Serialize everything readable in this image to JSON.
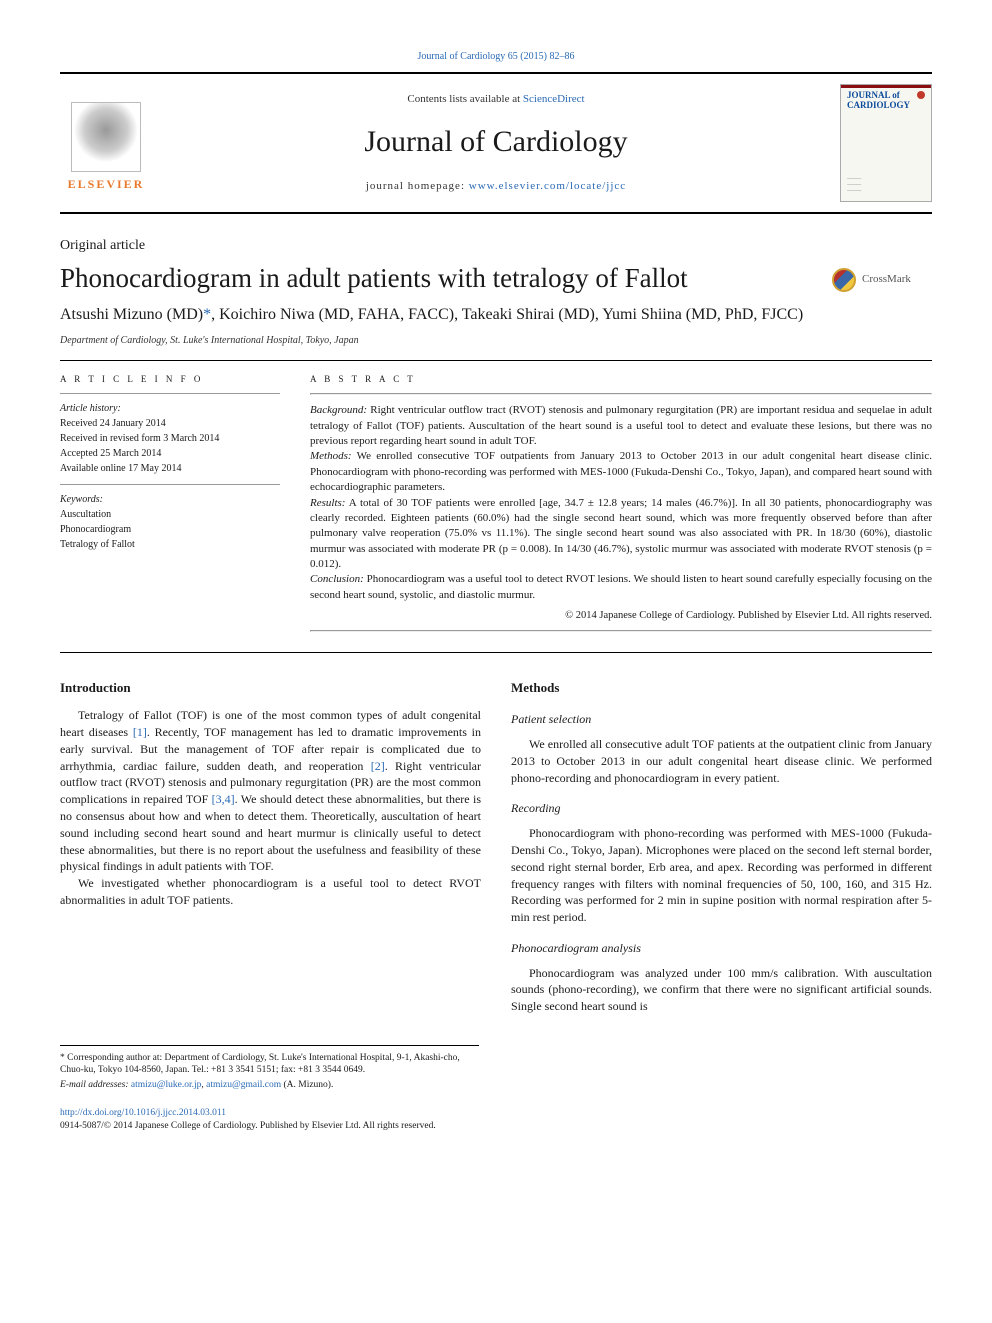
{
  "top_link": "Journal of Cardiology 65 (2015) 82–86",
  "header": {
    "elsevier_label": "ELSEVIER",
    "contents_prefix": "Contents lists available at ",
    "contents_link": "ScienceDirect",
    "journal_title": "Journal of Cardiology",
    "homepage_prefix": "journal homepage: ",
    "homepage_url": "www.elsevier.com/locate/jjcc",
    "cover_title": "JOURNAL of CARDIOLOGY"
  },
  "article": {
    "type": "Original article",
    "title": "Phonocardiogram in adult patients with tetralogy of Fallot",
    "crossmark_label": "CrossMark",
    "authors_html": "Atsushi Mizuno (MD)<span class=\"corr\">*</span>, Koichiro Niwa (MD, FAHA, FACC), Takeaki Shirai (MD), Yumi Shiina (MD, PhD, FJCC)",
    "affiliation": "Department of Cardiology, St. Luke's International Hospital, Tokyo, Japan"
  },
  "info": {
    "heading": "A R T I C L E   I N F O",
    "history_label": "Article history:",
    "received": "Received 24 January 2014",
    "revised": "Received in revised form 3 March 2014",
    "accepted": "Accepted 25 March 2014",
    "online": "Available online 17 May 2014",
    "keywords_label": "Keywords:",
    "kw1": "Auscultation",
    "kw2": "Phonocardiogram",
    "kw3": "Tetralogy of Fallot"
  },
  "abstract": {
    "heading": "A B S T R A C T",
    "background_label": "Background:",
    "background": " Right ventricular outflow tract (RVOT) stenosis and pulmonary regurgitation (PR) are important residua and sequelae in adult tetralogy of Fallot (TOF) patients. Auscultation of the heart sound is a useful tool to detect and evaluate these lesions, but there was no previous report regarding heart sound in adult TOF.",
    "methods_label": "Methods:",
    "methods": " We enrolled consecutive TOF outpatients from January 2013 to October 2013 in our adult congenital heart disease clinic. Phonocardiogram with phono-recording was performed with MES-1000 (Fukuda-Denshi Co., Tokyo, Japan), and compared heart sound with echocardiographic parameters.",
    "results_label": "Results:",
    "results": " A total of 30 TOF patients were enrolled [age, 34.7 ± 12.8 years; 14 males (46.7%)]. In all 30 patients, phonocardiography was clearly recorded. Eighteen patients (60.0%) had the single second heart sound, which was more frequently observed before than after pulmonary valve reoperation (75.0% vs 11.1%). The single second heart sound was also associated with PR. In 18/30 (60%), diastolic murmur was associated with moderate PR (p = 0.008). In 14/30 (46.7%), systolic murmur was associated with moderate RVOT stenosis (p = 0.012).",
    "conclusion_label": "Conclusion:",
    "conclusion": " Phonocardiogram was a useful tool to detect RVOT lesions. We should listen to heart sound carefully especially focusing on the second heart sound, systolic, and diastolic murmur.",
    "copyright": "© 2014 Japanese College of Cardiology. Published by Elsevier Ltd. All rights reserved."
  },
  "body": {
    "intro_heading": "Introduction",
    "intro_p1a": "Tetralogy of Fallot (TOF) is one of the most common types of adult congenital heart diseases ",
    "ref1": "[1]",
    "intro_p1b": ". Recently, TOF management has led to dramatic improvements in early survival. But the management of TOF after repair is complicated due to arrhythmia, cardiac failure, sudden death, and reoperation ",
    "ref2": "[2]",
    "intro_p1c": ". Right ventricular outflow tract (RVOT) stenosis and pulmonary regurgitation (PR) are the most common complications in repaired TOF ",
    "ref34": "[3,4]",
    "intro_p1d": ". We should detect these abnormalities, but there is no consensus about how and when to detect them. Theoretically, auscultation of heart sound including second heart sound and heart murmur is clinically useful to detect these abnormalities, but there is no report about the usefulness and feasibility of these physical findings in adult patients with TOF.",
    "intro_p2": "We investigated whether phonocardiogram is a useful tool to detect RVOT abnormalities in adult TOF patients.",
    "methods_heading": "Methods",
    "sel_heading": "Patient selection",
    "sel_p": "We enrolled all consecutive adult TOF patients at the outpatient clinic from January 2013 to October 2013 in our adult congenital heart disease clinic. We performed phono-recording and phonocardiogram in every patient.",
    "rec_heading": "Recording",
    "rec_p": "Phonocardiogram with phono-recording was performed with MES-1000 (Fukuda-Denshi Co., Tokyo, Japan). Microphones were placed on the second left sternal border, second right sternal border, Erb area, and apex. Recording was performed in different frequency ranges with filters with nominal frequencies of 50, 100, 160, and 315 Hz. Recording was performed for 2 min in supine position with normal respiration after 5-min rest period.",
    "pca_heading": "Phonocardiogram analysis",
    "pca_p": "Phonocardiogram was analyzed under 100 mm/s calibration. With auscultation sounds (phono-recording), we confirm that there were no significant artificial sounds. Single second heart sound is"
  },
  "footnotes": {
    "corr": "* Corresponding author at: Department of Cardiology, St. Luke's International Hospital, 9-1, Akashi-cho, Chuo-ku, Tokyo 104-8560, Japan. Tel.: +81 3 3541 5151; fax: +81 3 3544 0649.",
    "email_label": "E-mail addresses: ",
    "email1": "atmizu@luke.or.jp",
    "email_sep": ", ",
    "email2": "atmizu@gmail.com",
    "email_tail": " (A. Mizuno)."
  },
  "bottom": {
    "doi": "http://dx.doi.org/10.1016/j.jjcc.2014.03.011",
    "issn_line": "0914-5087/© 2014 Japanese College of Cardiology. Published by Elsevier Ltd. All rights reserved."
  },
  "colors": {
    "link": "#2a6ab5",
    "elsevier": "#e77a2f",
    "text": "#1a1a1a"
  }
}
